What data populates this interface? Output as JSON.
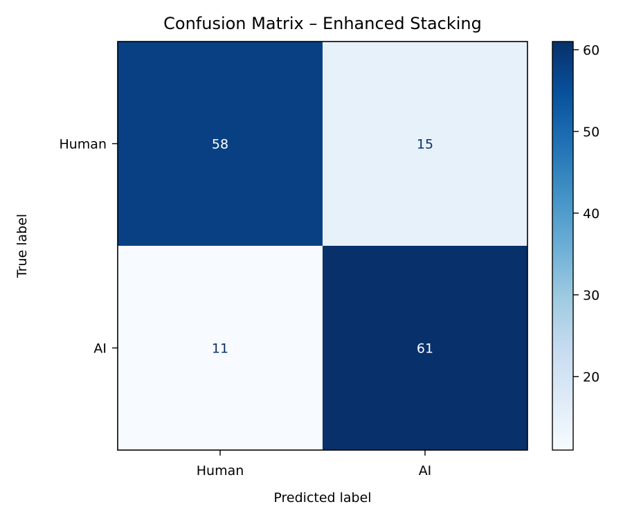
{
  "chart_data": {
    "type": "heatmap",
    "title": "Confusion Matrix – Enhanced Stacking",
    "xlabel": "Predicted label",
    "ylabel": "True label",
    "x_categories": [
      "Human",
      "AI"
    ],
    "y_categories": [
      "Human",
      "AI"
    ],
    "values": [
      [
        58,
        15
      ],
      [
        11,
        61
      ]
    ],
    "color_scale": {
      "name": "Blues",
      "min": 11,
      "max": 61,
      "ticks": [
        "20",
        "30",
        "40",
        "50",
        "60"
      ]
    },
    "colors": {
      "low": "#f7fbff",
      "high": "#08306b",
      "frame": "#000000",
      "light_text": "#ffffff",
      "dark_text": "#08306b"
    }
  }
}
